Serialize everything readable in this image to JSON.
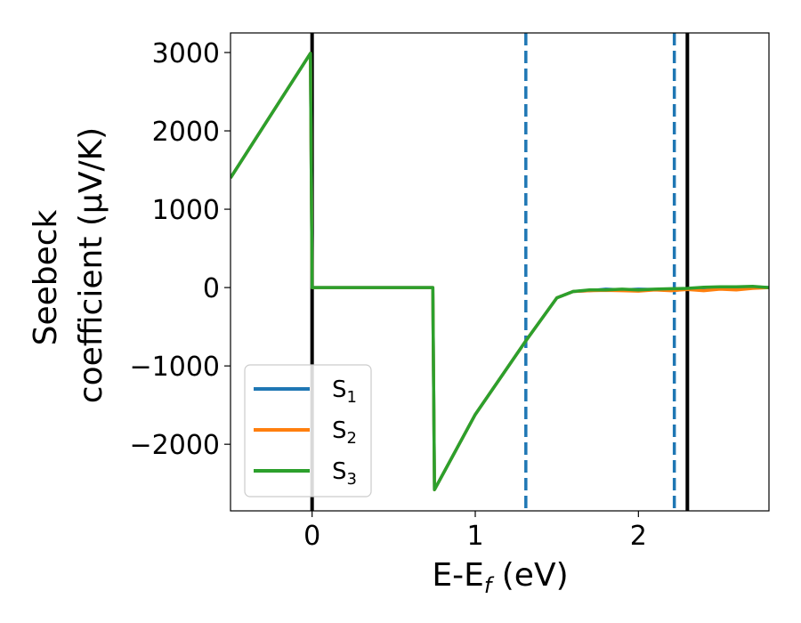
{
  "chart_data": {
    "type": "line",
    "xlabel_main": "E-E",
    "xlabel_sub": "f",
    "xlabel_unit": " (eV)",
    "ylabel_line1": "Seebeck",
    "ylabel_line2": "coefficient  (μV/K)",
    "xlim": [
      -0.5,
      2.8
    ],
    "ylim": [
      -2850,
      3250
    ],
    "xticks": [
      0,
      1,
      2
    ],
    "yticks": [
      3000,
      2000,
      1000,
      0,
      -1000,
      -2000
    ],
    "ytick_labels": [
      "3000",
      "2000",
      "1000",
      "0",
      "−1000",
      "−2000"
    ],
    "grid": false,
    "legend_position": "lower-left",
    "vlines": [
      {
        "x": 0.0,
        "style": "solid",
        "color": "#000000"
      },
      {
        "x": 2.3,
        "style": "solid",
        "color": "#000000"
      },
      {
        "x": 1.31,
        "style": "dashed",
        "color": "#1f77b4"
      },
      {
        "x": 2.22,
        "style": "dashed",
        "color": "#1f77b4"
      }
    ],
    "series": [
      {
        "name_base": "S",
        "name_sub": "1",
        "color": "#1f77b4",
        "x": [
          -0.5,
          -0.01,
          0.0,
          0.74,
          0.75,
          1.0,
          1.31,
          1.5,
          1.6,
          1.7,
          1.8,
          1.9,
          2.0,
          2.1,
          2.2,
          2.3,
          2.4,
          2.5,
          2.6,
          2.7,
          2.8
        ],
        "y": [
          1400,
          2990,
          0,
          0,
          -2580,
          -1620,
          -680,
          -130,
          -50,
          -40,
          -20,
          -30,
          -20,
          -25,
          -20,
          -15,
          -10,
          0,
          5,
          10,
          0
        ]
      },
      {
        "name_base": "S",
        "name_sub": "2",
        "color": "#ff7f0e",
        "x": [
          -0.5,
          -0.01,
          0.0,
          0.74,
          0.75,
          1.0,
          1.31,
          1.5,
          1.6,
          1.7,
          1.8,
          1.9,
          2.0,
          2.1,
          2.2,
          2.3,
          2.4,
          2.5,
          2.6,
          2.7,
          2.8
        ],
        "y": [
          1400,
          2990,
          0,
          0,
          -2580,
          -1620,
          -680,
          -130,
          -50,
          -40,
          -35,
          -40,
          -45,
          -30,
          -40,
          -25,
          -40,
          -20,
          -30,
          -10,
          0
        ]
      },
      {
        "name_base": "S",
        "name_sub": "3",
        "color": "#2ca02c",
        "x": [
          -0.5,
          -0.01,
          0.0,
          0.74,
          0.75,
          1.0,
          1.31,
          1.5,
          1.6,
          1.7,
          1.8,
          1.9,
          2.0,
          2.1,
          2.2,
          2.3,
          2.4,
          2.5,
          2.6,
          2.7,
          2.8
        ],
        "y": [
          1400,
          2990,
          0,
          0,
          -2580,
          -1620,
          -680,
          -130,
          -50,
          -30,
          -30,
          -20,
          -30,
          -20,
          -15,
          -10,
          5,
          10,
          10,
          15,
          0
        ]
      }
    ]
  }
}
